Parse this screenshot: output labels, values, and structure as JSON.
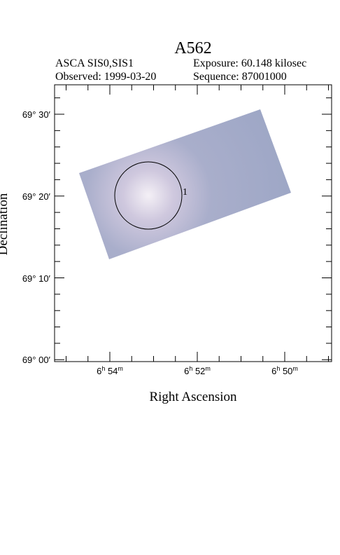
{
  "header": {
    "title": "A562",
    "instrument": "ASCA SIS0,SIS1",
    "exposure": "Exposure: 60.148 kilosec",
    "observed": "Observed: 1999-03-20",
    "sequence": "Sequence: 87001000"
  },
  "axes": {
    "x_label": "Right Ascension",
    "y_label": "Declination",
    "y_tick_labels": [
      "69° 30′",
      "69° 20′",
      "69° 10′",
      "69° 00′"
    ],
    "x_tick_labels": [
      [
        "6",
        "h",
        " 54",
        "m"
      ],
      [
        "6",
        "h",
        " 52",
        "m"
      ],
      [
        "6",
        "h",
        " 50",
        "m"
      ]
    ]
  },
  "regions": [
    {
      "label": "1"
    }
  ]
}
